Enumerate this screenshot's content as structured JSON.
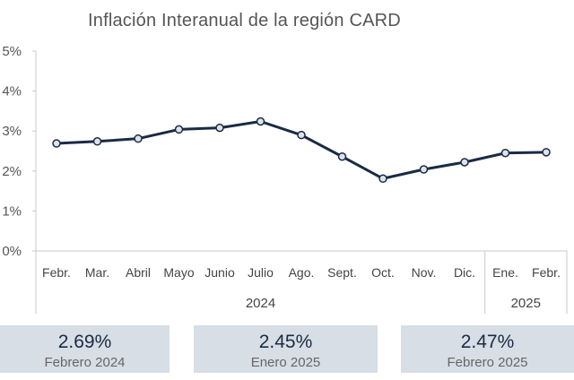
{
  "chart_data": {
    "type": "line",
    "title": "Inflación Interanual de la región CARD",
    "categories": [
      "Febr.",
      "Mar.",
      "Abril",
      "Mayo",
      "Junio",
      "Julio",
      "Ago.",
      "Sept.",
      "Oct.",
      "Nov.",
      "Dic.",
      "Ene.",
      "Febr."
    ],
    "groups": [
      {
        "label": "2024",
        "count": 11
      },
      {
        "label": "2025",
        "count": 2
      }
    ],
    "series": [
      {
        "values": [
          2.69,
          2.74,
          2.81,
          3.04,
          3.08,
          3.24,
          2.9,
          2.36,
          1.81,
          2.04,
          2.22,
          2.45,
          2.47
        ]
      }
    ],
    "ylim": [
      0,
      5
    ],
    "yticks": [
      "0%",
      "1%",
      "2%",
      "3%",
      "4%",
      "5%"
    ],
    "grid": false,
    "line_color": "#1a2b45",
    "marker_fill": "#dce3ec"
  },
  "cards": [
    {
      "value": "2.69%",
      "label": "Febrero 2024"
    },
    {
      "value": "2.45%",
      "label": "Enero 2025"
    },
    {
      "value": "2.47%",
      "label": "Febrero 2025"
    }
  ]
}
